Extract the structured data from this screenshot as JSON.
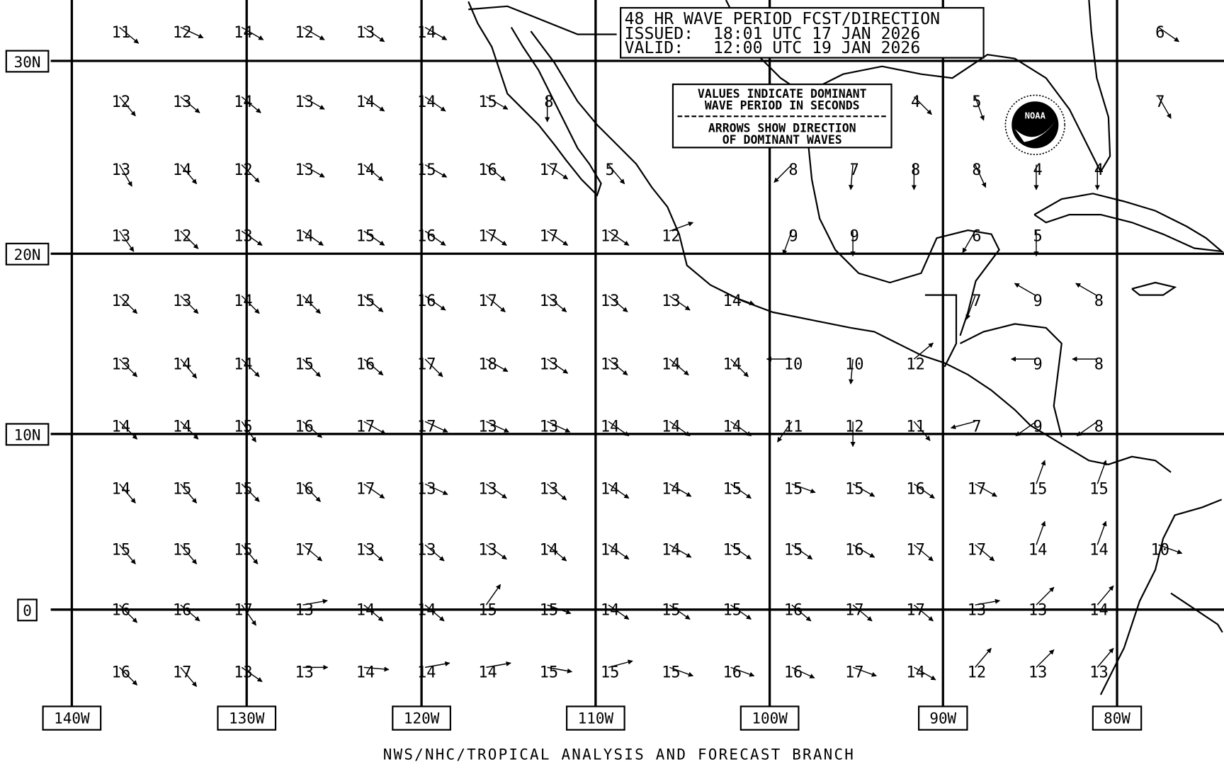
{
  "header": {
    "title": "48 HR WAVE PERIOD FCST/DIRECTION",
    "issued": "ISSUED:  18:01 UTC 17 JAN 2026",
    "valid": "VALID:   12:00 UTC 19 JAN 2026"
  },
  "legend": {
    "line1": "VALUES INDICATE DOMINANT",
    "line2": "WAVE PERIOD IN SECONDS",
    "line3": "ARROWS SHOW DIRECTION",
    "line4": "OF DOMINANT WAVES"
  },
  "latitude_labels": [
    "30N",
    "20N",
    "10N",
    "0"
  ],
  "longitude_labels": [
    "140W",
    "130W",
    "120W",
    "110W",
    "100W",
    "90W",
    "80W"
  ],
  "footer": "NWS/NHC/TROPICAL ANALYSIS AND FORECAST BRANCH",
  "logo": "NOAA",
  "colors": {
    "background": "#ffffff",
    "ink": "#000000"
  },
  "chart_data": {
    "type": "map-grid",
    "value_unit": "seconds",
    "direction_unit": "compass degrees (arrow heading)",
    "rows": [
      [
        [
          11,
          130
        ],
        [
          12,
          115
        ],
        [
          14,
          120
        ],
        [
          12,
          120
        ],
        [
          13,
          125
        ],
        [
          14,
          120
        ],
        null,
        null,
        null,
        null,
        null,
        null,
        null,
        null,
        null,
        null,
        null,
        [
          6,
          125
        ]
      ],
      [
        [
          12,
          140
        ],
        [
          13,
          130
        ],
        [
          14,
          130
        ],
        [
          13,
          120
        ],
        [
          14,
          125
        ],
        [
          14,
          125
        ],
        [
          15,
          120
        ],
        [
          8,
          180
        ],
        null,
        null,
        null,
        null,
        null,
        [
          4,
          135
        ],
        [
          5,
          160
        ],
        null,
        null,
        [
          7,
          150
        ]
      ],
      [
        [
          13,
          150
        ],
        [
          14,
          140
        ],
        [
          12,
          135
        ],
        [
          13,
          120
        ],
        [
          14,
          130
        ],
        [
          15,
          120
        ],
        [
          16,
          130
        ],
        [
          17,
          125
        ],
        [
          5,
          140
        ],
        null,
        null,
        [
          8,
          225
        ],
        [
          7,
          185
        ],
        [
          8,
          180
        ],
        [
          8,
          155
        ],
        [
          4,
          180
        ],
        [
          4,
          180
        ],
        null
      ],
      [
        [
          13,
          145
        ],
        [
          12,
          135
        ],
        [
          13,
          125
        ],
        [
          14,
          125
        ],
        [
          15,
          125
        ],
        [
          16,
          125
        ],
        [
          17,
          125
        ],
        [
          17,
          125
        ],
        [
          12,
          125
        ],
        [
          12,
          70
        ],
        null,
        [
          9,
          200
        ],
        [
          9,
          180
        ],
        null,
        [
          6,
          210
        ],
        [
          5,
          180
        ],
        null,
        null
      ],
      [
        [
          12,
          135
        ],
        [
          13,
          135
        ],
        [
          14,
          135
        ],
        [
          14,
          135
        ],
        [
          15,
          130
        ],
        [
          16,
          125
        ],
        [
          17,
          130
        ],
        [
          13,
          130
        ],
        [
          13,
          130
        ],
        [
          13,
          125
        ],
        [
          14,
          110
        ],
        null,
        null,
        null,
        [
          7,
          200
        ],
        [
          9,
          300
        ],
        [
          8,
          300
        ],
        null
      ],
      [
        [
          13,
          135
        ],
        [
          14,
          140
        ],
        [
          14,
          135
        ],
        [
          15,
          135
        ],
        [
          16,
          130
        ],
        [
          17,
          135
        ],
        [
          18,
          120
        ],
        [
          13,
          125
        ],
        [
          13,
          130
        ],
        [
          14,
          130
        ],
        [
          14,
          135
        ],
        [
          10,
          270
        ],
        [
          10,
          185
        ],
        [
          12,
          50
        ],
        null,
        [
          9,
          270
        ],
        [
          8,
          270
        ],
        null
      ],
      [
        [
          14,
          135
        ],
        [
          14,
          135
        ],
        [
          15,
          145
        ],
        [
          16,
          130
        ],
        [
          17,
          120
        ],
        [
          17,
          115
        ],
        [
          13,
          115
        ],
        [
          13,
          115
        ],
        [
          14,
          125
        ],
        [
          14,
          125
        ],
        [
          14,
          125
        ],
        [
          11,
          215
        ],
        [
          12,
          180
        ],
        [
          11,
          140
        ],
        [
          7,
          255
        ],
        [
          9,
          235
        ],
        [
          8,
          235
        ],
        null
      ],
      [
        [
          14,
          140
        ],
        [
          15,
          140
        ],
        [
          15,
          135
        ],
        [
          16,
          135
        ],
        [
          17,
          125
        ],
        [
          13,
          115
        ],
        [
          13,
          125
        ],
        [
          13,
          130
        ],
        [
          14,
          125
        ],
        [
          14,
          120
        ],
        [
          15,
          125
        ],
        [
          15,
          110
        ],
        [
          15,
          120
        ],
        [
          16,
          125
        ],
        [
          17,
          120
        ],
        [
          15,
          20
        ],
        [
          15,
          20
        ],
        null
      ],
      [
        [
          15,
          140
        ],
        [
          15,
          140
        ],
        [
          15,
          140
        ],
        [
          17,
          130
        ],
        [
          13,
          130
        ],
        [
          13,
          130
        ],
        [
          13,
          125
        ],
        [
          14,
          130
        ],
        [
          14,
          125
        ],
        [
          14,
          120
        ],
        [
          15,
          125
        ],
        [
          15,
          125
        ],
        [
          16,
          120
        ],
        [
          17,
          130
        ],
        [
          17,
          130
        ],
        [
          14,
          20
        ],
        [
          14,
          20
        ],
        [
          10,
          110
        ]
      ],
      [
        [
          16,
          135
        ],
        [
          16,
          130
        ],
        [
          17,
          145
        ],
        [
          13,
          80
        ],
        [
          14,
          130
        ],
        [
          14,
          130
        ],
        [
          15,
          35
        ],
        [
          15,
          110
        ],
        [
          14,
          125
        ],
        [
          15,
          125
        ],
        [
          15,
          125
        ],
        [
          16,
          130
        ],
        [
          17,
          130
        ],
        [
          17,
          130
        ],
        [
          13,
          80
        ],
        [
          13,
          45
        ],
        [
          14,
          40
        ],
        null
      ],
      [
        [
          16,
          135
        ],
        [
          17,
          140
        ],
        [
          13,
          125
        ],
        [
          13,
          90
        ],
        [
          14,
          95
        ],
        [
          14,
          80
        ],
        [
          14,
          80
        ],
        [
          15,
          100
        ],
        [
          15,
          75
        ],
        [
          15,
          110
        ],
        [
          16,
          110
        ],
        [
          16,
          115
        ],
        [
          17,
          110
        ],
        [
          14,
          120
        ],
        [
          12,
          40
        ],
        [
          13,
          45
        ],
        [
          13,
          40
        ],
        null
      ]
    ]
  }
}
